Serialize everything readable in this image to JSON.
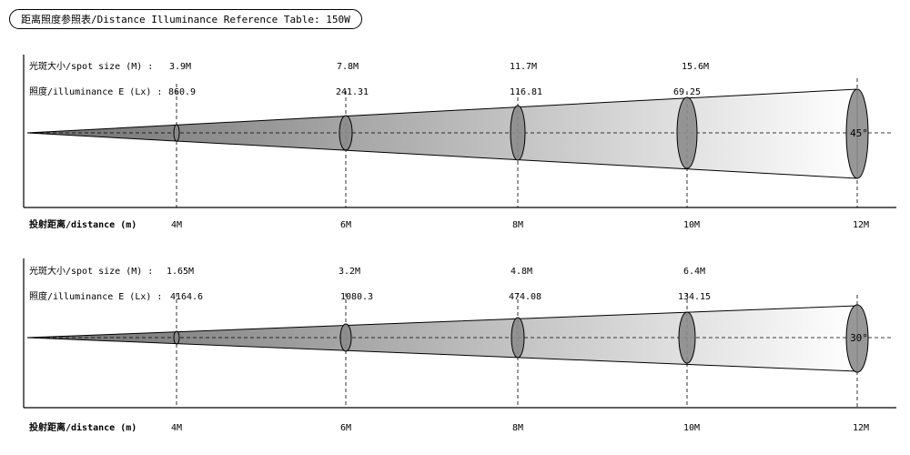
{
  "title": "距离照度参照表/Distance Illuminance Reference Table: 150W",
  "labels": {
    "spot": "光斑大小/spot size (M) :",
    "illum": "照度/illuminance E (Lx) :",
    "distance": "投射距离/distance (m)"
  },
  "distances": [
    "4M",
    "6M",
    "8M",
    "10M",
    "12M"
  ],
  "panels": [
    {
      "angle": "45°",
      "spot_sizes": [
        "3.9M",
        "7.8M",
        "11.7M",
        "15.6M"
      ],
      "illuminance": [
        "860.9",
        "241.31",
        "116.81",
        "69.25"
      ]
    },
    {
      "angle": "30°",
      "spot_sizes": [
        "1.65M",
        "3.2M",
        "4.8M",
        "6.4M"
      ],
      "illuminance": [
        "4164.6",
        "1080.3",
        "474.08",
        "134.15"
      ]
    }
  ],
  "colors": {
    "beam_light": "#ffffff",
    "beam_dark": "#8a8a8a",
    "ellipse": "#8c8c8c"
  }
}
